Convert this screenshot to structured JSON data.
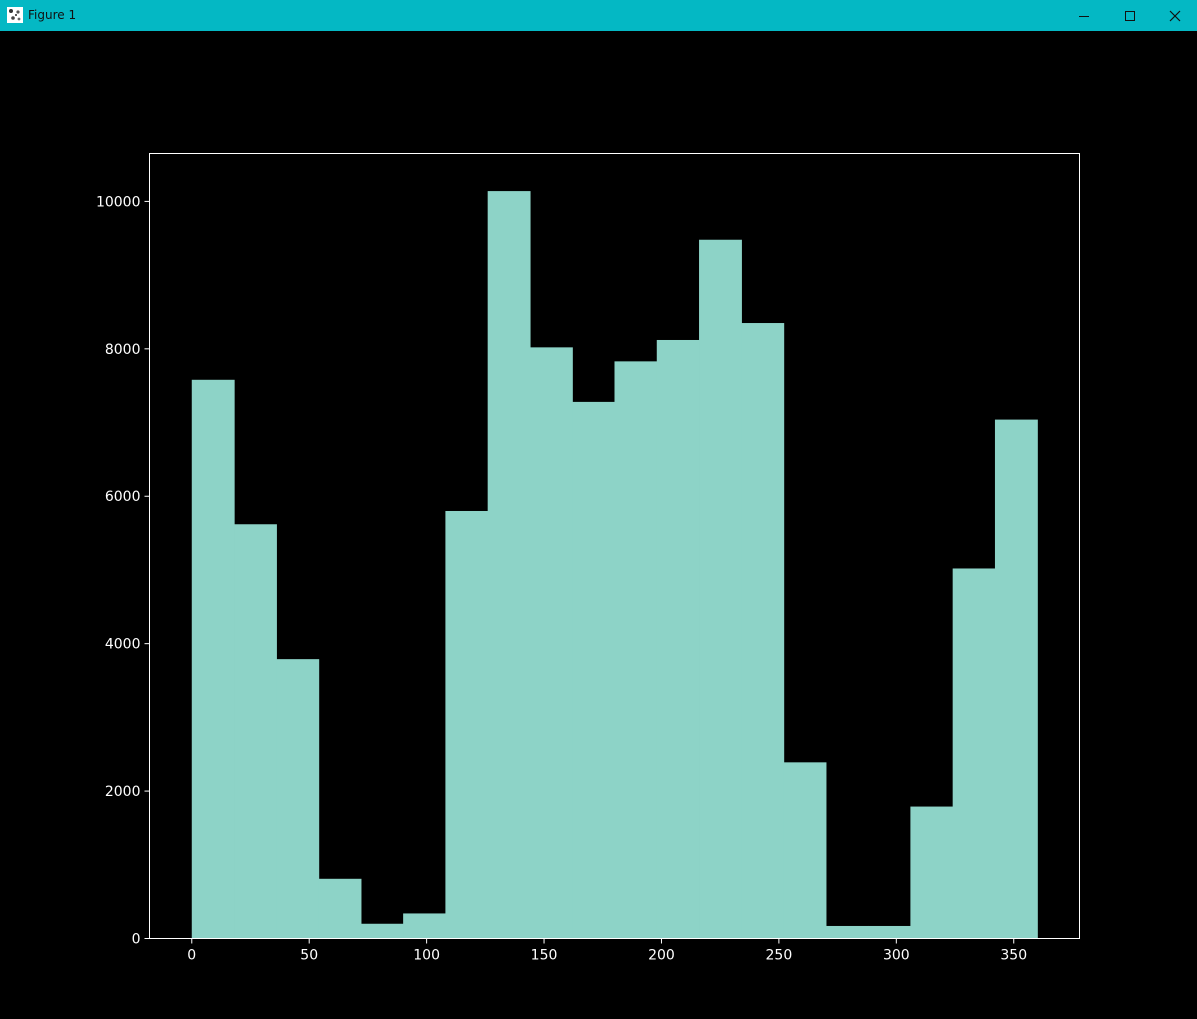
{
  "window": {
    "title": "Figure 1",
    "icons": {
      "app": "matplotlib-figure-icon",
      "minimize": "minimize-icon",
      "maximize": "maximize-icon",
      "close": "close-icon"
    },
    "colors": {
      "titlebar": "#04b8c4",
      "background": "#000000"
    }
  },
  "chart_data": {
    "type": "bar",
    "title": "",
    "xlabel": "",
    "ylabel": "",
    "xlim": [
      -18,
      378
    ],
    "ylim": [
      0,
      10650
    ],
    "grid": false,
    "bar_color": "#8dd3c7",
    "axes_color": "#ffffff",
    "bins": [
      {
        "x0": 0,
        "x1": 18,
        "value": 7580
      },
      {
        "x0": 18,
        "x1": 36,
        "value": 5620
      },
      {
        "x0": 36,
        "x1": 54,
        "value": 3790
      },
      {
        "x0": 54,
        "x1": 72,
        "value": 810
      },
      {
        "x0": 72,
        "x1": 90,
        "value": 200
      },
      {
        "x0": 90,
        "x1": 108,
        "value": 340
      },
      {
        "x0": 108,
        "x1": 126,
        "value": 5800
      },
      {
        "x0": 126,
        "x1": 144,
        "value": 10140
      },
      {
        "x0": 144,
        "x1": 162,
        "value": 8020
      },
      {
        "x0": 162,
        "x1": 180,
        "value": 7280
      },
      {
        "x0": 180,
        "x1": 198,
        "value": 7830
      },
      {
        "x0": 198,
        "x1": 216,
        "value": 8120
      },
      {
        "x0": 216,
        "x1": 234,
        "value": 9480
      },
      {
        "x0": 234,
        "x1": 252,
        "value": 8350
      },
      {
        "x0": 252,
        "x1": 270,
        "value": 2390
      },
      {
        "x0": 270,
        "x1": 288,
        "value": 170
      },
      {
        "x0": 288,
        "x1": 306,
        "value": 170
      },
      {
        "x0": 306,
        "x1": 324,
        "value": 1790
      },
      {
        "x0": 324,
        "x1": 342,
        "value": 5020
      },
      {
        "x0": 342,
        "x1": 360,
        "value": 7040
      }
    ],
    "xticks": [
      0,
      50,
      100,
      150,
      200,
      250,
      300,
      350
    ],
    "xtick_labels": [
      "0",
      "50",
      "100",
      "150",
      "200",
      "250",
      "300",
      "350"
    ],
    "yticks": [
      0,
      2000,
      4000,
      6000,
      8000,
      10000
    ],
    "ytick_labels": [
      "0",
      "2000",
      "4000",
      "6000",
      "8000",
      "10000"
    ]
  }
}
